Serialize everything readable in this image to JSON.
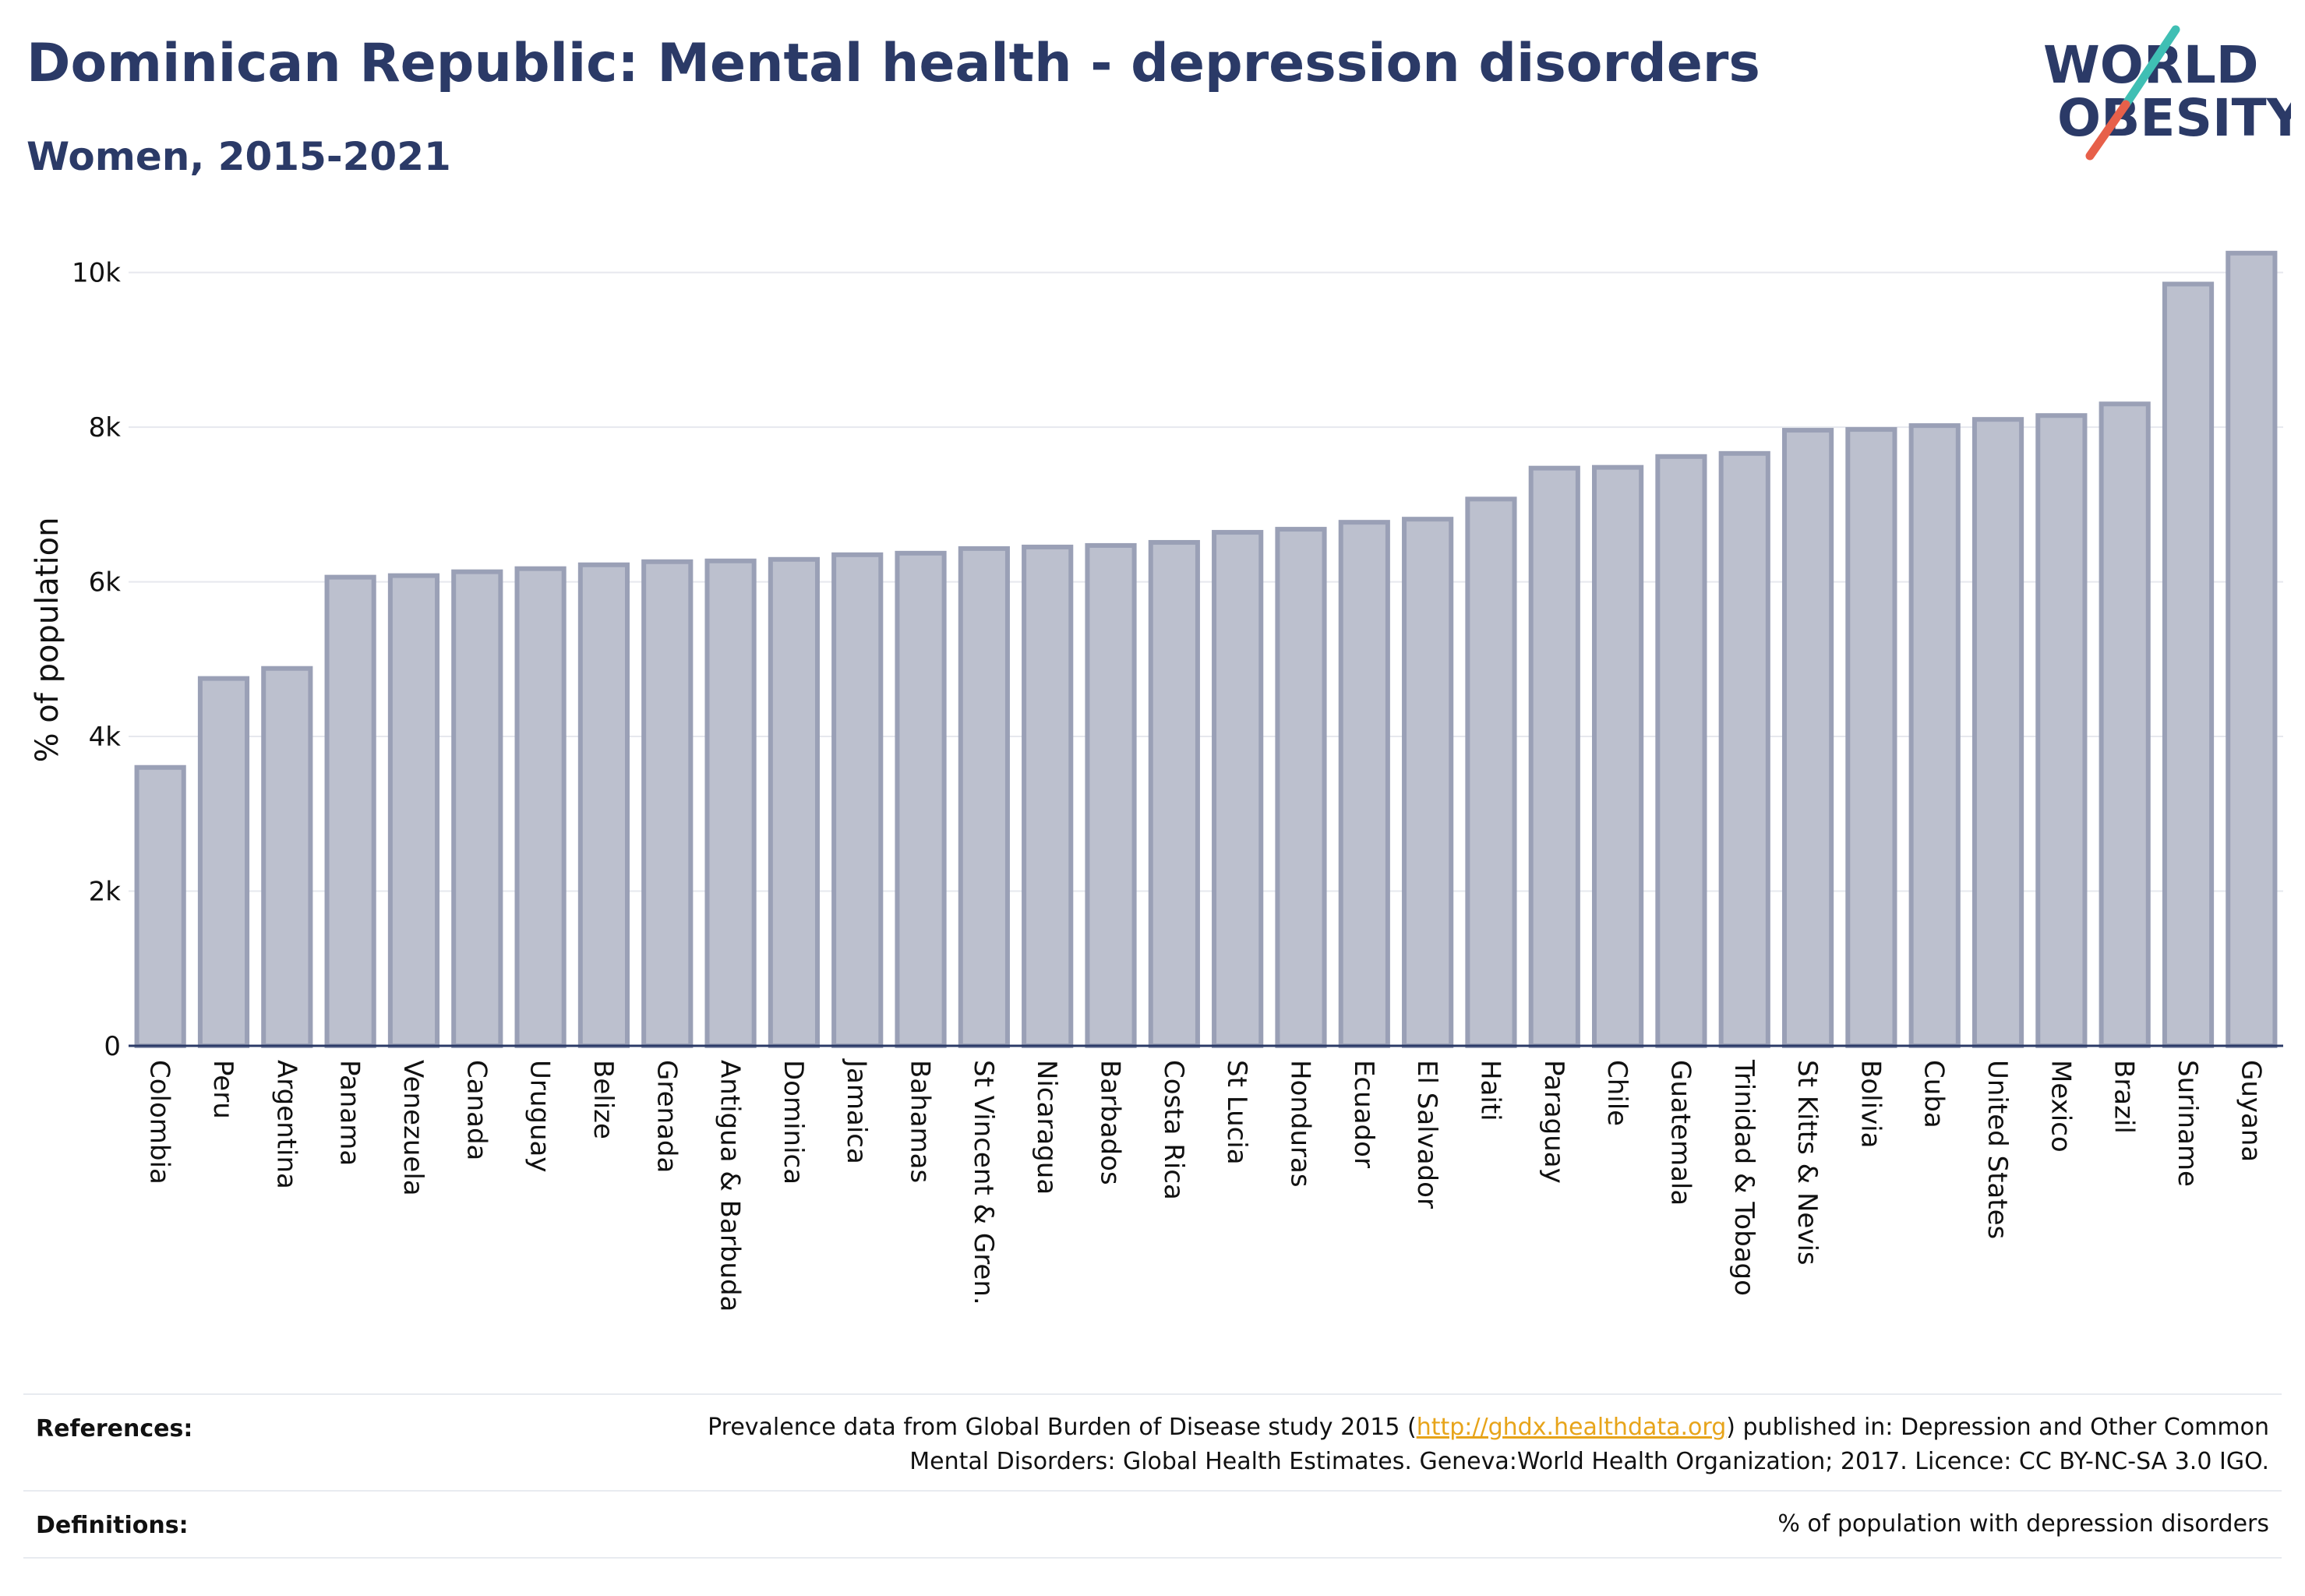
{
  "header": {
    "title": "Dominican Republic: Mental health - depression disorders",
    "subtitle": "Women, 2015-2021"
  },
  "logo": {
    "line1": "WORLD",
    "line2": "OBESITY",
    "colors": {
      "text": "#2b3a67",
      "slash_top": "#3fbfb4",
      "slash_bottom": "#e7604a"
    }
  },
  "chart_data": {
    "type": "bar",
    "ylabel": "% of population",
    "xlabel": "",
    "ylim": [
      0,
      10500
    ],
    "yticks": [
      0,
      2000,
      4000,
      6000,
      8000,
      10000
    ],
    "ytick_labels": [
      "0",
      "2k",
      "4k",
      "6k",
      "8k",
      "10k"
    ],
    "grid": true,
    "bar_color": "#bcc0ce",
    "bar_edge_color": "#9aa0b6",
    "categories": [
      "Colombia",
      "Peru",
      "Argentina",
      "Panama",
      "Venezuela",
      "Canada",
      "Uruguay",
      "Belize",
      "Grenada",
      "Antigua & Barbuda",
      "Dominica",
      "Jamaica",
      "Bahamas",
      "St Vincent & Gren.",
      "Nicaragua",
      "Barbados",
      "Costa Rica",
      "St Lucia",
      "Honduras",
      "Ecuador",
      "El Salvador",
      "Haiti",
      "Paraguay",
      "Chile",
      "Guatemala",
      "Trinidad & Tobago",
      "St Kitts & Nevis",
      "Bolivia",
      "Cuba",
      "United States",
      "Mexico",
      "Brazil",
      "Suriname",
      "Guyana"
    ],
    "values": [
      3600,
      4750,
      4880,
      6060,
      6080,
      6130,
      6170,
      6220,
      6260,
      6270,
      6290,
      6350,
      6370,
      6430,
      6450,
      6470,
      6510,
      6640,
      6680,
      6770,
      6810,
      7070,
      7470,
      7480,
      7620,
      7660,
      7960,
      7970,
      8020,
      8100,
      8150,
      8300,
      9850,
      10250
    ]
  },
  "footer": {
    "references_label": "References:",
    "references_line1_pre": "Prevalence data from Global Burden of Disease study 2015 (",
    "references_link": "http://ghdx.healthdata.org",
    "references_line1_post": ") published in: Depression and Other Common",
    "references_line2": "Mental Disorders: Global Health Estimates. Geneva:World Health Organization; 2017. Licence: CC BY-NC-SA 3.0 IGO.",
    "definitions_label": "Definitions:",
    "definitions_text": "% of population with depression disorders"
  }
}
